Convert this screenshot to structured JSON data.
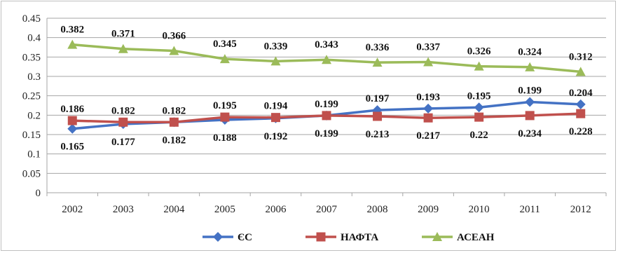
{
  "chart_data": {
    "type": "line",
    "x": [
      "2002",
      "2003",
      "2004",
      "2005",
      "2006",
      "2007",
      "2008",
      "2009",
      "2010",
      "2011",
      "2012"
    ],
    "ylim": [
      0,
      0.45
    ],
    "yticks": [
      "0",
      "0.05",
      "0.1",
      "0.15",
      "0.2",
      "0.25",
      "0.3",
      "0.35",
      "0.4",
      "0.45"
    ],
    "grid": true,
    "legend_position": "bottom",
    "series": [
      {
        "name": "ЄС",
        "color": "#4472c4",
        "marker": "diamond",
        "values": [
          0.165,
          0.177,
          0.182,
          0.188,
          0.192,
          0.199,
          0.213,
          0.217,
          0.22,
          0.234,
          0.228
        ],
        "labels": [
          "0.165",
          "0.177",
          "0.182",
          "0.188",
          "0.192",
          "0.199",
          "0.213",
          "0.217",
          "0.22",
          "0.234",
          "0.228"
        ]
      },
      {
        "name": "НАФТА",
        "color": "#c0504d",
        "marker": "square",
        "values": [
          0.186,
          0.182,
          0.182,
          0.195,
          0.194,
          0.199,
          0.197,
          0.193,
          0.195,
          0.199,
          0.204
        ],
        "labels": [
          "0.186",
          "0.182",
          "0.182",
          "0.195",
          "0.194",
          "0.199",
          "0.197",
          "0.193",
          "0.195",
          "0.199",
          "0.204"
        ]
      },
      {
        "name": "АСЕАН",
        "color": "#9bbb59",
        "marker": "triangle",
        "values": [
          0.382,
          0.371,
          0.366,
          0.345,
          0.339,
          0.343,
          0.336,
          0.337,
          0.326,
          0.324,
          0.312
        ],
        "labels": [
          "0.382",
          "0.371",
          "0.366",
          "0.345",
          "0.339",
          "0.343",
          "0.336",
          "0.337",
          "0.326",
          "0.324",
          "0.312"
        ]
      }
    ]
  }
}
